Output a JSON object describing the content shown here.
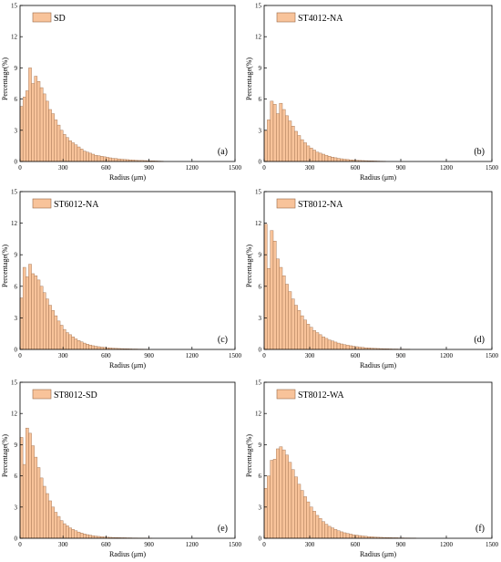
{
  "chart_data": [
    {
      "type": "bar",
      "panel_label": "(a)",
      "series": [
        {
          "name": "SD",
          "color": "#f8c39a"
        }
      ],
      "xlabel": "Radius (μm)",
      "ylabel": "Percentage(%)",
      "xlim": [
        0,
        1500
      ],
      "ylim": [
        0,
        15
      ],
      "xticks": [
        0,
        300,
        600,
        900,
        1200,
        1500
      ],
      "yticks": [
        0,
        3,
        6,
        9,
        12,
        15
      ],
      "bin_width": 20,
      "x": [
        10,
        30,
        50,
        70,
        90,
        110,
        130,
        150,
        170,
        190,
        210,
        230,
        250,
        270,
        290,
        310,
        330,
        350,
        370,
        390,
        410,
        430,
        450,
        470,
        490,
        510,
        530,
        550,
        570,
        590,
        610,
        630,
        650,
        670,
        690,
        710,
        730,
        750,
        770,
        790,
        810,
        830,
        850,
        870,
        890,
        910,
        930,
        950,
        970,
        990
      ],
      "values": [
        5.3,
        6.2,
        6.8,
        9.0,
        7.5,
        8.2,
        7.7,
        7.1,
        6.5,
        5.8,
        5.0,
        4.6,
        4.0,
        3.5,
        3.0,
        2.6,
        2.3,
        2.0,
        1.8,
        1.6,
        1.4,
        1.2,
        1.0,
        0.9,
        0.8,
        0.7,
        0.6,
        0.55,
        0.5,
        0.45,
        0.4,
        0.35,
        0.3,
        0.28,
        0.25,
        0.22,
        0.2,
        0.18,
        0.16,
        0.14,
        0.12,
        0.1,
        0.1,
        0.09,
        0.08,
        0.07,
        0.06,
        0.05,
        0.04,
        0.03
      ],
      "grid": false,
      "legend": "top-left"
    },
    {
      "type": "bar",
      "panel_label": "(b)",
      "series": [
        {
          "name": "ST4012-NA",
          "color": "#f8c39a"
        }
      ],
      "xlabel": "Radius (μm)",
      "ylabel": "Percentage(%)",
      "xlim": [
        0,
        1500
      ],
      "ylim": [
        0,
        15
      ],
      "xticks": [
        0,
        300,
        600,
        900,
        1200,
        1500
      ],
      "yticks": [
        0,
        3,
        6,
        9,
        12,
        15
      ],
      "bin_width": 20,
      "x": [
        10,
        30,
        50,
        70,
        90,
        110,
        130,
        150,
        170,
        190,
        210,
        230,
        250,
        270,
        290,
        310,
        330,
        350,
        370,
        390,
        410,
        430,
        450,
        470,
        490,
        510,
        530,
        550,
        570,
        590,
        610,
        630,
        650,
        670,
        690,
        710,
        730,
        750,
        770,
        790
      ],
      "values": [
        3.0,
        4.0,
        5.8,
        5.5,
        4.6,
        5.6,
        5.0,
        4.4,
        3.9,
        3.4,
        2.9,
        2.5,
        2.1,
        1.8,
        1.5,
        1.3,
        1.1,
        0.9,
        0.8,
        0.7,
        0.6,
        0.5,
        0.42,
        0.36,
        0.3,
        0.26,
        0.22,
        0.19,
        0.16,
        0.14,
        0.12,
        0.1,
        0.09,
        0.08,
        0.07,
        0.06,
        0.05,
        0.04,
        0.03,
        0.02
      ],
      "grid": false,
      "legend": "top-left"
    },
    {
      "type": "bar",
      "panel_label": "(c)",
      "series": [
        {
          "name": "ST6012-NA",
          "color": "#f8c39a"
        }
      ],
      "xlabel": "Radius (μm)",
      "ylabel": "Percentage(%)",
      "xlim": [
        0,
        1500
      ],
      "ylim": [
        0,
        15
      ],
      "xticks": [
        0,
        300,
        600,
        900,
        1200,
        1500
      ],
      "yticks": [
        0,
        3,
        6,
        9,
        12,
        15
      ],
      "bin_width": 20,
      "x": [
        10,
        30,
        50,
        70,
        90,
        110,
        130,
        150,
        170,
        190,
        210,
        230,
        250,
        270,
        290,
        310,
        330,
        350,
        370,
        390,
        410,
        430,
        450,
        470,
        490,
        510,
        530,
        550,
        570,
        590,
        610,
        630,
        650,
        670,
        690,
        710,
        730,
        750,
        770,
        790,
        810,
        830,
        850,
        870,
        890
      ],
      "values": [
        4.9,
        7.8,
        6.9,
        8.1,
        7.2,
        7.0,
        6.6,
        6.0,
        5.4,
        4.8,
        4.2,
        3.7,
        3.2,
        2.7,
        2.3,
        1.9,
        1.6,
        1.4,
        1.2,
        1.0,
        0.85,
        0.72,
        0.6,
        0.5,
        0.42,
        0.35,
        0.3,
        0.26,
        0.22,
        0.19,
        0.16,
        0.14,
        0.12,
        0.1,
        0.09,
        0.08,
        0.07,
        0.06,
        0.05,
        0.04,
        0.04,
        0.03,
        0.03,
        0.02,
        0.02
      ],
      "grid": false,
      "legend": "top-left"
    },
    {
      "type": "bar",
      "panel_label": "(d)",
      "series": [
        {
          "name": "ST8012-NA",
          "color": "#f8c39a"
        }
      ],
      "xlabel": "Radius (μm)",
      "ylabel": "Percentage(%)",
      "xlim": [
        0,
        1500
      ],
      "ylim": [
        0,
        15
      ],
      "xticks": [
        0,
        300,
        600,
        900,
        1200,
        1500
      ],
      "yticks": [
        0,
        3,
        6,
        9,
        12,
        15
      ],
      "bin_width": 20,
      "x": [
        10,
        30,
        50,
        70,
        90,
        110,
        130,
        150,
        170,
        190,
        210,
        230,
        250,
        270,
        290,
        310,
        330,
        350,
        370,
        390,
        410,
        430,
        450,
        470,
        490,
        510,
        530,
        550,
        570,
        590,
        610,
        630,
        650,
        670,
        690,
        710,
        730,
        750,
        770,
        790,
        810,
        830,
        850,
        870,
        890,
        910,
        930,
        950
      ],
      "values": [
        11.9,
        7.7,
        11.3,
        10.3,
        8.6,
        7.8,
        7.0,
        6.2,
        5.5,
        4.8,
        4.2,
        3.7,
        3.2,
        2.8,
        2.4,
        2.1,
        1.8,
        1.6,
        1.4,
        1.2,
        1.05,
        0.9,
        0.8,
        0.7,
        0.6,
        0.52,
        0.45,
        0.4,
        0.35,
        0.3,
        0.26,
        0.22,
        0.19,
        0.16,
        0.14,
        0.12,
        0.1,
        0.09,
        0.08,
        0.07,
        0.06,
        0.05,
        0.04,
        0.04,
        0.03,
        0.03,
        0.02,
        0.02
      ],
      "grid": false,
      "legend": "top-left"
    },
    {
      "type": "bar",
      "panel_label": "(e)",
      "series": [
        {
          "name": "ST8012-SD",
          "color": "#f8c39a"
        }
      ],
      "xlabel": "Radius (μm)",
      "ylabel": "Percentage(%)",
      "xlim": [
        0,
        1500
      ],
      "ylim": [
        0,
        15
      ],
      "xticks": [
        0,
        300,
        600,
        900,
        1200,
        1500
      ],
      "yticks": [
        0,
        3,
        6,
        9,
        12,
        15
      ],
      "bin_width": 20,
      "x": [
        10,
        30,
        50,
        70,
        90,
        110,
        130,
        150,
        170,
        190,
        210,
        230,
        250,
        270,
        290,
        310,
        330,
        350,
        370,
        390,
        410,
        430,
        450,
        470,
        490,
        510,
        530,
        550,
        570,
        590,
        610,
        630,
        650,
        670,
        690,
        710,
        730,
        750,
        770,
        790,
        810,
        830,
        850,
        870,
        890,
        910
      ],
      "values": [
        9.7,
        7.1,
        10.6,
        10.1,
        8.9,
        7.8,
        6.8,
        5.8,
        5.0,
        4.3,
        3.6,
        3.0,
        2.5,
        2.1,
        1.7,
        1.4,
        1.2,
        1.0,
        0.85,
        0.72,
        0.6,
        0.5,
        0.42,
        0.35,
        0.3,
        0.25,
        0.21,
        0.18,
        0.15,
        0.13,
        0.11,
        0.09,
        0.08,
        0.07,
        0.06,
        0.05,
        0.05,
        0.04,
        0.04,
        0.03,
        0.03,
        0.02,
        0.02,
        0.02,
        0.01,
        0.01
      ],
      "grid": false,
      "legend": "top-left"
    },
    {
      "type": "bar",
      "panel_label": "(f)",
      "series": [
        {
          "name": "ST8012-WA",
          "color": "#f8c39a"
        }
      ],
      "xlabel": "Radius (μm)",
      "ylabel": "Percentage(%)",
      "xlim": [
        0,
        1500
      ],
      "ylim": [
        0,
        15
      ],
      "xticks": [
        0,
        300,
        600,
        900,
        1200,
        1500
      ],
      "yticks": [
        0,
        3,
        6,
        9,
        12,
        15
      ],
      "bin_width": 20,
      "x": [
        10,
        30,
        50,
        70,
        90,
        110,
        130,
        150,
        170,
        190,
        210,
        230,
        250,
        270,
        290,
        310,
        330,
        350,
        370,
        390,
        410,
        430,
        450,
        470,
        490,
        510,
        530,
        550,
        570,
        590,
        610,
        630,
        650,
        670,
        690,
        710,
        730,
        750,
        770,
        790,
        810,
        830,
        850,
        870,
        890,
        910,
        930,
        950,
        970,
        990
      ],
      "values": [
        4.8,
        6.0,
        7.5,
        7.6,
        8.6,
        8.8,
        8.5,
        8.0,
        7.3,
        6.6,
        5.9,
        5.2,
        4.6,
        4.0,
        3.5,
        3.0,
        2.6,
        2.2,
        1.9,
        1.6,
        1.35,
        1.15,
        1.0,
        0.85,
        0.72,
        0.62,
        0.53,
        0.46,
        0.4,
        0.34,
        0.3,
        0.26,
        0.22,
        0.19,
        0.16,
        0.14,
        0.12,
        0.1,
        0.09,
        0.08,
        0.07,
        0.06,
        0.05,
        0.05,
        0.04,
        0.04,
        0.03,
        0.03,
        0.02,
        0.02
      ],
      "grid": false,
      "legend": "top-left"
    }
  ]
}
